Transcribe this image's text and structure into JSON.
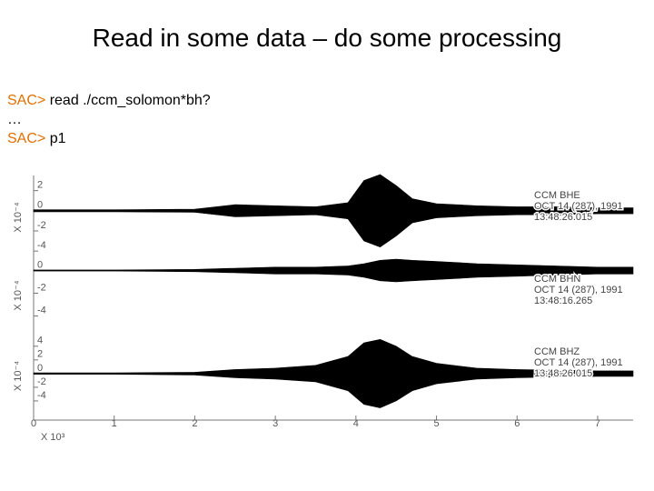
{
  "title": "Read in some data – do some processing",
  "commands": [
    {
      "prompt": "SAC>",
      "text": "read ./ccm_solomon*bh?"
    },
    {
      "text": "…"
    },
    {
      "prompt": "SAC>",
      "text": "p1"
    }
  ],
  "chart_data": {
    "type": "area",
    "xlabel": "X 10³",
    "xlim": [
      0,
      7.44
    ],
    "xticks": [
      0,
      1,
      2,
      3,
      4,
      5,
      6,
      7
    ],
    "color": "#000000",
    "panels": [
      {
        "ylabel": "X 10⁻⁴",
        "ylim": [
          -4.8,
          3.5
        ],
        "yticks": [
          2,
          0,
          -2,
          -4
        ],
        "annotation": [
          "CCM BHE",
          "OCT 14 (287), 1991",
          "13:48:26.015"
        ],
        "x": [
          0,
          1,
          2,
          2.5,
          3,
          3.5,
          3.9,
          4.1,
          4.3,
          4.5,
          4.7,
          5,
          5.5,
          6,
          6.5,
          7,
          7.44
        ],
        "values": [
          0.1,
          0.1,
          0.15,
          0.6,
          0.5,
          0.4,
          0.8,
          3,
          3.6,
          2.5,
          1.2,
          0.7,
          0.5,
          0.4,
          0.4,
          0.3,
          0.3
        ]
      },
      {
        "ylabel": "X 10⁻⁴",
        "ylim": [
          -5.4,
          1
        ],
        "yticks": [
          0,
          -2,
          -4
        ],
        "annotation": [
          "CCM BHN",
          "OCT 14 (287), 1991",
          "13:48:16.265"
        ],
        "x": [
          0,
          1,
          2,
          2.5,
          3,
          3.5,
          3.9,
          4.1,
          4.3,
          4.5,
          4.7,
          5,
          5.5,
          6,
          6.5,
          7,
          7.44
        ],
        "values": [
          0.05,
          0.05,
          0.1,
          0.2,
          0.3,
          0.3,
          0.4,
          0.6,
          0.9,
          1,
          0.9,
          0.8,
          0.6,
          0.5,
          0.4,
          0.3,
          0.3
        ]
      },
      {
        "ylabel": "X 10⁻⁴",
        "ylim": [
          -6.8,
          6.1
        ],
        "yticks": [
          4,
          2,
          0,
          -2,
          -4
        ],
        "annotation": [
          "CCM BHZ",
          "OCT 14 (287), 1991",
          "13:48:26.015"
        ],
        "x": [
          0,
          1,
          2,
          2.5,
          3,
          3.5,
          3.9,
          4.1,
          4.3,
          4.5,
          4.7,
          5,
          5.5,
          6,
          6.5,
          7,
          7.44
        ],
        "values": [
          0.1,
          0.1,
          0.2,
          0.6,
          0.8,
          1.2,
          2.5,
          4.5,
          5,
          4,
          2.5,
          1.5,
          0.8,
          0.6,
          0.5,
          0.4,
          0.4
        ]
      }
    ]
  }
}
